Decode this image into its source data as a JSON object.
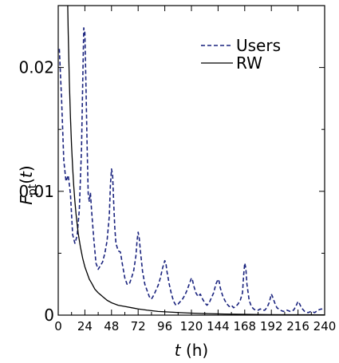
{
  "chart_data": {
    "type": "line",
    "xlabel": "t (h)",
    "ylabel": "F_pt(t)",
    "xlim": [
      0,
      240
    ],
    "ylim": [
      0,
      0.025
    ],
    "x_ticks": [
      0,
      24,
      48,
      72,
      96,
      120,
      144,
      168,
      192,
      216,
      240
    ],
    "x_tick_labels": [
      "0",
      "24",
      "48",
      "72",
      "96",
      "120",
      "144",
      "168",
      "192",
      "216",
      "240"
    ],
    "y_ticks": [
      0,
      0.01,
      0.02
    ],
    "y_tick_labels": [
      "0",
      "0.01",
      "0.02"
    ],
    "legend_position": "top-right",
    "series": [
      {
        "name": "Users",
        "style": "dashed",
        "color": "#1a237e",
        "points": [
          [
            1,
            0.0215
          ],
          [
            3,
            0.0175
          ],
          [
            5,
            0.0125
          ],
          [
            7,
            0.0108
          ],
          [
            9,
            0.0113
          ],
          [
            11,
            0.0098
          ],
          [
            13,
            0.0065
          ],
          [
            15,
            0.0058
          ],
          [
            17,
            0.0064
          ],
          [
            19,
            0.0085
          ],
          [
            21,
            0.0135
          ],
          [
            22,
            0.0185
          ],
          [
            23,
            0.0232
          ],
          [
            24,
            0.0228
          ],
          [
            25,
            0.0185
          ],
          [
            26,
            0.0138
          ],
          [
            27,
            0.0098
          ],
          [
            28,
            0.0092
          ],
          [
            29,
            0.0099
          ],
          [
            30,
            0.0085
          ],
          [
            32,
            0.0062
          ],
          [
            34,
            0.0042
          ],
          [
            36,
            0.0037
          ],
          [
            38,
            0.004
          ],
          [
            40,
            0.0043
          ],
          [
            42,
            0.005
          ],
          [
            44,
            0.006
          ],
          [
            46,
            0.008
          ],
          [
            47,
            0.0105
          ],
          [
            48,
            0.0118
          ],
          [
            49,
            0.0113
          ],
          [
            50,
            0.009
          ],
          [
            51,
            0.007
          ],
          [
            52,
            0.0058
          ],
          [
            54,
            0.0052
          ],
          [
            56,
            0.0051
          ],
          [
            58,
            0.004
          ],
          [
            60,
            0.003
          ],
          [
            62,
            0.0025
          ],
          [
            64,
            0.0025
          ],
          [
            66,
            0.003
          ],
          [
            68,
            0.0036
          ],
          [
            70,
            0.0048
          ],
          [
            71,
            0.006
          ],
          [
            72,
            0.0067
          ],
          [
            73,
            0.0062
          ],
          [
            74,
            0.0052
          ],
          [
            76,
            0.0035
          ],
          [
            78,
            0.0025
          ],
          [
            80,
            0.002
          ],
          [
            82,
            0.0015
          ],
          [
            84,
            0.0013
          ],
          [
            86,
            0.0016
          ],
          [
            88,
            0.002
          ],
          [
            90,
            0.0024
          ],
          [
            92,
            0.003
          ],
          [
            94,
            0.0038
          ],
          [
            96,
            0.0044
          ],
          [
            97,
            0.0042
          ],
          [
            98,
            0.0035
          ],
          [
            100,
            0.0025
          ],
          [
            102,
            0.0017
          ],
          [
            104,
            0.0011
          ],
          [
            106,
            0.0008
          ],
          [
            108,
            0.0009
          ],
          [
            110,
            0.0011
          ],
          [
            112,
            0.0013
          ],
          [
            114,
            0.0016
          ],
          [
            116,
            0.002
          ],
          [
            118,
            0.0025
          ],
          [
            120,
            0.003
          ],
          [
            121,
            0.0028
          ],
          [
            122,
            0.0024
          ],
          [
            124,
            0.0018
          ],
          [
            126,
            0.0015
          ],
          [
            128,
            0.0017
          ],
          [
            130,
            0.0013
          ],
          [
            132,
            0.001
          ],
          [
            134,
            0.0008
          ],
          [
            136,
            0.001
          ],
          [
            138,
            0.0014
          ],
          [
            140,
            0.0018
          ],
          [
            142,
            0.0025
          ],
          [
            144,
            0.0029
          ],
          [
            145,
            0.0027
          ],
          [
            146,
            0.0022
          ],
          [
            148,
            0.0016
          ],
          [
            150,
            0.0012
          ],
          [
            152,
            0.0009
          ],
          [
            154,
            0.0007
          ],
          [
            156,
            0.0008
          ],
          [
            158,
            0.0006
          ],
          [
            160,
            0.0007
          ],
          [
            162,
            0.0009
          ],
          [
            164,
            0.0012
          ],
          [
            166,
            0.0018
          ],
          [
            167,
            0.0032
          ],
          [
            168,
            0.0042
          ],
          [
            169,
            0.0038
          ],
          [
            170,
            0.0025
          ],
          [
            172,
            0.0012
          ],
          [
            174,
            0.0007
          ],
          [
            176,
            0.0005
          ],
          [
            178,
            0.0004
          ],
          [
            180,
            0.0004
          ],
          [
            182,
            0.0005
          ],
          [
            184,
            0.0004
          ],
          [
            186,
            0.0004
          ],
          [
            188,
            0.0006
          ],
          [
            190,
            0.001
          ],
          [
            192,
            0.0017
          ],
          [
            193,
            0.0015
          ],
          [
            195,
            0.001
          ],
          [
            197,
            0.0006
          ],
          [
            200,
            0.0004
          ],
          [
            203,
            0.0003
          ],
          [
            206,
            0.0004
          ],
          [
            209,
            0.0003
          ],
          [
            212,
            0.0004
          ],
          [
            214,
            0.0007
          ],
          [
            216,
            0.0011
          ],
          [
            217,
            0.001
          ],
          [
            219,
            0.0006
          ],
          [
            222,
            0.0003
          ],
          [
            225,
            0.0002
          ],
          [
            228,
            0.0003
          ],
          [
            231,
            0.0002
          ],
          [
            234,
            0.0004
          ],
          [
            237,
            0.0005
          ],
          [
            240,
            0.0004
          ]
        ]
      },
      {
        "name": "RW",
        "style": "solid",
        "color": "#000000",
        "points": [
          [
            8.5,
            0.0253
          ],
          [
            9,
            0.0228
          ],
          [
            10,
            0.0189
          ],
          [
            11,
            0.016
          ],
          [
            12,
            0.0137
          ],
          [
            13,
            0.0119
          ],
          [
            14,
            0.0104
          ],
          [
            15,
            0.0092
          ],
          [
            16,
            0.0082
          ],
          [
            17,
            0.0074
          ],
          [
            18,
            0.0066
          ],
          [
            20,
            0.0055
          ],
          [
            22,
            0.0046
          ],
          [
            24,
            0.0039
          ],
          [
            26,
            0.0034
          ],
          [
            28,
            0.0029
          ],
          [
            30,
            0.0026
          ],
          [
            33,
            0.0021
          ],
          [
            36,
            0.0018
          ],
          [
            40,
            0.0015
          ],
          [
            44,
            0.0012
          ],
          [
            48,
            0.001
          ],
          [
            54,
            0.0008
          ],
          [
            60,
            0.0007
          ],
          [
            66,
            0.0006
          ],
          [
            72,
            0.0005
          ],
          [
            80,
            0.0004
          ],
          [
            90,
            0.0003
          ],
          [
            100,
            0.00025
          ],
          [
            110,
            0.0002
          ],
          [
            120,
            0.00016
          ],
          [
            135,
            0.00012
          ],
          [
            150,
            9e-05
          ],
          [
            170,
            6e-05
          ],
          [
            190,
            4e-05
          ],
          [
            215,
            3e-05
          ],
          [
            240,
            2e-05
          ]
        ]
      }
    ]
  },
  "axis": {
    "x_label_main": "t",
    "x_label_unit": " (h)",
    "y_label_main": "F",
    "y_label_sub": "pt",
    "y_label_open": "(",
    "y_label_var": "t",
    "y_label_close": ")"
  }
}
